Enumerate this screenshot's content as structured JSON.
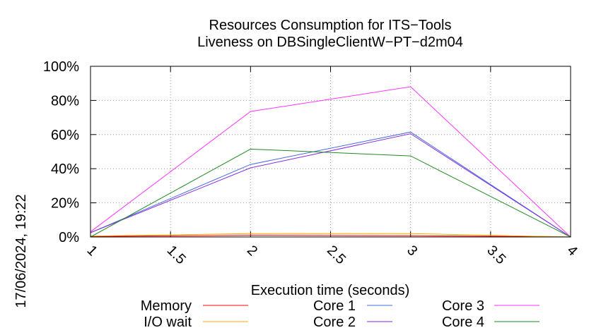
{
  "chart_data": {
    "type": "line",
    "title": "Resources Consumption for ITS−Tools",
    "subtitle": "Liveness on DBSingleClientW−PT−d2m04",
    "xlabel": "Execution time (seconds)",
    "ylabel": "",
    "side_label": "17/06/2024, 19:22",
    "xlim": [
      1,
      4
    ],
    "ylim": [
      0,
      100
    ],
    "x_ticks": [
      {
        "value": 1,
        "label": "1"
      },
      {
        "value": 1.5,
        "label": "1.5"
      },
      {
        "value": 2,
        "label": "2"
      },
      {
        "value": 2.5,
        "label": "2.5"
      },
      {
        "value": 3,
        "label": "3"
      },
      {
        "value": 3.5,
        "label": "3.5"
      },
      {
        "value": 4,
        "label": "4"
      }
    ],
    "y_ticks": [
      {
        "value": 0,
        "label": "0%"
      },
      {
        "value": 20,
        "label": "20%"
      },
      {
        "value": 40,
        "label": "40%"
      },
      {
        "value": 60,
        "label": "60%"
      },
      {
        "value": 80,
        "label": "80%"
      },
      {
        "value": 100,
        "label": "100%"
      }
    ],
    "grid": true,
    "legend_position": "bottom",
    "x": [
      1,
      2,
      3,
      4
    ],
    "series": [
      {
        "name": "Memory",
        "color": "#ff0000",
        "values": [
          0.3,
          1.0,
          0.8,
          0.0
        ]
      },
      {
        "name": "I/O wait",
        "color": "#ffa500",
        "values": [
          0.5,
          2.0,
          2.0,
          0.0
        ]
      },
      {
        "name": "Core 1",
        "color": "#4169e1",
        "values": [
          2.5,
          42.5,
          61.5,
          0.0
        ]
      },
      {
        "name": "Core 2",
        "color": "#8a2be2",
        "values": [
          2.5,
          40.5,
          60.5,
          0.0
        ]
      },
      {
        "name": "Core 3",
        "color": "#ff33ff",
        "values": [
          3.0,
          73.5,
          88.0,
          0.0
        ]
      },
      {
        "name": "Core 4",
        "color": "#228b22",
        "values": [
          0.0,
          51.5,
          47.5,
          0.0
        ]
      }
    ]
  }
}
